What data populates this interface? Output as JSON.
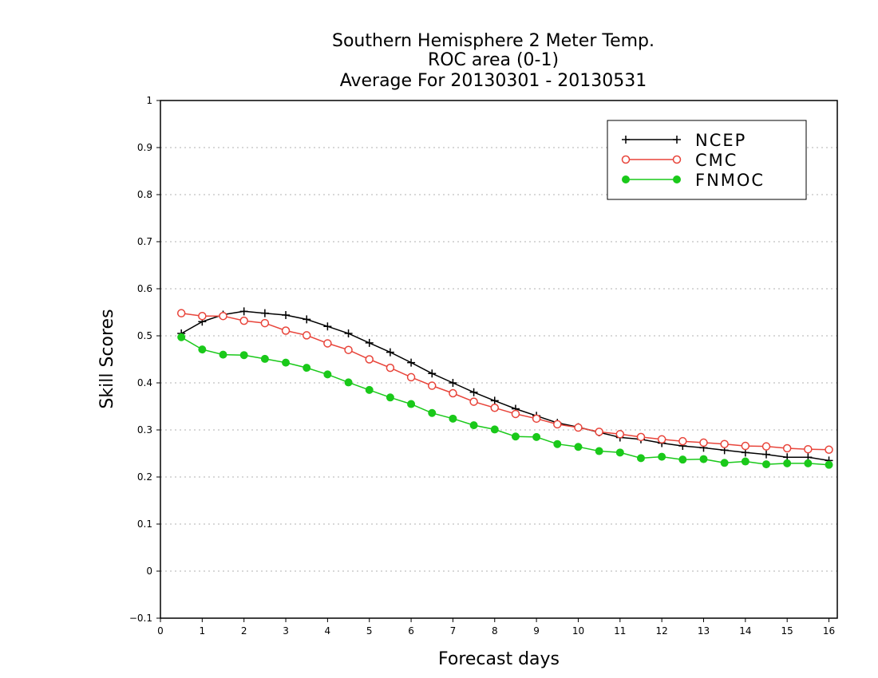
{
  "chart_data": {
    "type": "line",
    "title": [
      "Southern Hemisphere 2 Meter Temp.",
      "ROC area (0-1)",
      "Average For 20130301 - 20130531"
    ],
    "xlabel": "Forecast days",
    "ylabel": "Skill Scores",
    "xlim": [
      0,
      16.2
    ],
    "ylim": [
      -0.1,
      1
    ],
    "xticks": [
      "0",
      "1",
      "2",
      "3",
      "4",
      "5",
      "6",
      "7",
      "8",
      "9",
      "10",
      "11",
      "12",
      "13",
      "14",
      "15",
      "16"
    ],
    "yticks": [
      "−0.1",
      "0",
      "0.1",
      "0.2",
      "0.3",
      "0.4",
      "0.5",
      "0.6",
      "0.7",
      "0.8",
      "0.9",
      "1"
    ],
    "grid": "horizontal dotted",
    "legend_position": "top-right",
    "x": [
      0.5,
      1,
      1.5,
      2,
      2.5,
      3,
      3.5,
      4,
      4.5,
      5,
      5.5,
      6,
      6.5,
      7,
      7.5,
      8,
      8.5,
      9,
      9.5,
      10,
      10.5,
      11,
      11.5,
      12,
      12.5,
      13,
      13.5,
      14,
      14.5,
      15,
      15.5,
      16
    ],
    "series": [
      {
        "name": "NCEP",
        "color": "#000000",
        "marker": "plus",
        "values": [
          0.505,
          0.53,
          0.545,
          0.552,
          0.548,
          0.544,
          0.535,
          0.52,
          0.505,
          0.485,
          0.465,
          0.443,
          0.42,
          0.4,
          0.38,
          0.362,
          0.345,
          0.33,
          0.315,
          0.306,
          0.295,
          0.284,
          0.28,
          0.272,
          0.266,
          0.262,
          0.257,
          0.252,
          0.248,
          0.242,
          0.242,
          0.235
        ]
      },
      {
        "name": "CMC",
        "color": "#e8443a",
        "marker": "open-circle",
        "values": [
          0.548,
          0.542,
          0.542,
          0.532,
          0.527,
          0.511,
          0.501,
          0.484,
          0.47,
          0.45,
          0.432,
          0.412,
          0.394,
          0.378,
          0.36,
          0.347,
          0.334,
          0.324,
          0.312,
          0.305,
          0.296,
          0.291,
          0.285,
          0.28,
          0.276,
          0.273,
          0.27,
          0.266,
          0.265,
          0.261,
          0.259,
          0.258
        ]
      },
      {
        "name": "FNMOC",
        "color": "#1ac91a",
        "marker": "filled-circle",
        "values": [
          0.497,
          0.471,
          0.46,
          0.459,
          0.451,
          0.443,
          0.432,
          0.418,
          0.401,
          0.385,
          0.369,
          0.355,
          0.336,
          0.324,
          0.31,
          0.301,
          0.286,
          0.285,
          0.27,
          0.264,
          0.255,
          0.252,
          0.24,
          0.243,
          0.237,
          0.238,
          0.23,
          0.233,
          0.227,
          0.229,
          0.229,
          0.226
        ]
      }
    ]
  }
}
